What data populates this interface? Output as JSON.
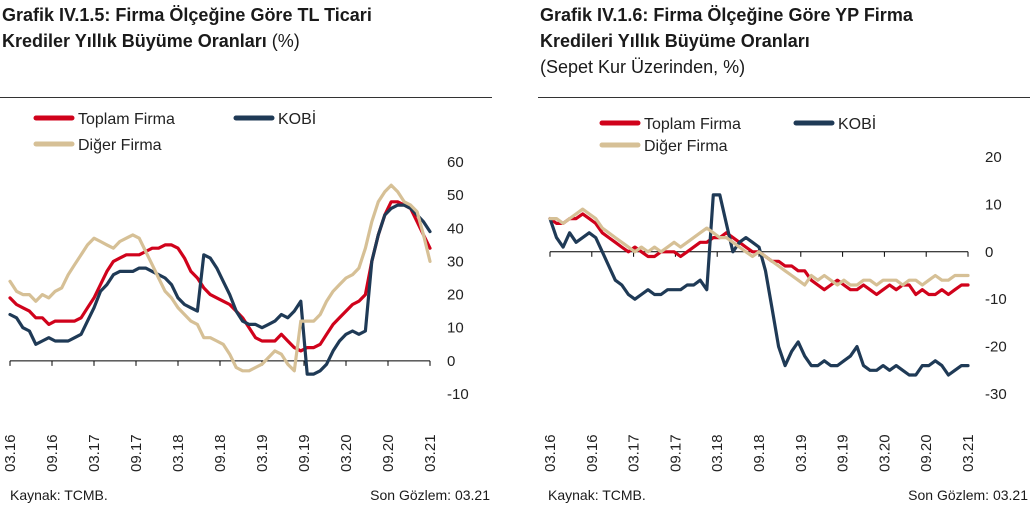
{
  "charts": [
    {
      "title_bold_1": "Grafik IV.1.5: Firma Ölçeğine Göre TL Ticari",
      "title_bold_2": "Krediler Yıllık Büyüme Oranları",
      "title_normal_2": " (%)",
      "title_line_3": "",
      "source": "Kaynak: TCMB.",
      "last_obs": "Son Gözlem: 03.21"
    },
    {
      "title_bold_1": "Grafik IV.1.6: Firma Ölçeğine Göre YP Firma",
      "title_bold_2": "Kredileri Yıllık Büyüme Oranları",
      "title_normal_2": "",
      "title_line_3": "(Sepet Kur Üzerinden, %)",
      "source": "Kaynak: TCMB.",
      "last_obs": "Son Gözlem: 03.21"
    }
  ],
  "chart_data": [
    {
      "type": "line",
      "x_ticks": [
        "03.16",
        "09.16",
        "03.17",
        "09.17",
        "03.18",
        "09.18",
        "03.19",
        "09.19",
        "03.20",
        "09.20",
        "03.21"
      ],
      "ylim": [
        -10,
        60
      ],
      "y_ticks": [
        -10,
        0,
        10,
        20,
        30,
        40,
        50,
        60
      ],
      "legend": "top-left",
      "series": [
        {
          "name": "Toplam Firma",
          "color": "#d0021b",
          "values": [
            19,
            17,
            16,
            15,
            13,
            13,
            11,
            12,
            12,
            12,
            12,
            13,
            16,
            19,
            23,
            27,
            30,
            31,
            32,
            32,
            32,
            33,
            34,
            34,
            35,
            35,
            34,
            31,
            27,
            25,
            22,
            20,
            19,
            18,
            17,
            15,
            13,
            10,
            7,
            6,
            6,
            6,
            8,
            6,
            4,
            3,
            4,
            4,
            5,
            8,
            11,
            13,
            15,
            17,
            18,
            20,
            30,
            38,
            44,
            48,
            48,
            47,
            46,
            42,
            38,
            34
          ]
        },
        {
          "name": "KOBİ",
          "color": "#1f3a56",
          "values": [
            14,
            13,
            10,
            9,
            5,
            6,
            7,
            6,
            6,
            6,
            7,
            8,
            12,
            16,
            21,
            23,
            26,
            27,
            27,
            27,
            28,
            28,
            27,
            26,
            25,
            23,
            19,
            17,
            16,
            15,
            32,
            31,
            28,
            24,
            20,
            15,
            12,
            11,
            11,
            10,
            11,
            12,
            14,
            13,
            15,
            18,
            -4,
            -4,
            -3,
            -1,
            3,
            6,
            8,
            9,
            8,
            9,
            30,
            38,
            44,
            46,
            47,
            47,
            46,
            44,
            42,
            39
          ]
        },
        {
          "name": "Diğer Firma",
          "color": "#d6c096",
          "values": [
            24,
            21,
            20,
            20,
            18,
            20,
            19,
            21,
            22,
            26,
            29,
            32,
            35,
            37,
            36,
            35,
            34,
            36,
            37,
            38,
            37,
            33,
            29,
            25,
            21,
            19,
            16,
            14,
            12,
            11,
            7,
            7,
            6,
            5,
            2,
            -2,
            -3,
            -3,
            -2,
            -1,
            1,
            3,
            2,
            -1,
            -3,
            12,
            12,
            12,
            14,
            18,
            21,
            23,
            25,
            26,
            28,
            34,
            42,
            48,
            51,
            53,
            51,
            48,
            47,
            45,
            38,
            30
          ]
        }
      ]
    },
    {
      "type": "line",
      "x_ticks": [
        "03.16",
        "09.16",
        "03.17",
        "09.17",
        "03.18",
        "09.18",
        "03.19",
        "09.19",
        "03.20",
        "09.20",
        "03.21"
      ],
      "ylim": [
        -30,
        20
      ],
      "y_ticks": [
        -30,
        -20,
        -10,
        0,
        10,
        20
      ],
      "legend": "top-left",
      "series": [
        {
          "name": "Toplam Firma",
          "color": "#d0021b",
          "values": [
            7,
            6,
            6,
            7,
            7,
            8,
            7,
            6,
            4,
            3,
            2,
            1,
            0,
            1,
            0,
            -1,
            -1,
            0,
            0,
            0,
            -1,
            0,
            1,
            2,
            2,
            3,
            3,
            4,
            3,
            2,
            1,
            0,
            0,
            -1,
            -2,
            -2,
            -3,
            -3,
            -4,
            -4,
            -6,
            -7,
            -8,
            -7,
            -6,
            -7,
            -8,
            -8,
            -7,
            -8,
            -9,
            -8,
            -7,
            -8,
            -7,
            -7,
            -9,
            -8,
            -9,
            -9,
            -8,
            -9,
            -8,
            -7,
            -7
          ]
        },
        {
          "name": "KOBİ",
          "color": "#1f3a56",
          "values": [
            7,
            3,
            1,
            4,
            2,
            3,
            4,
            3,
            0,
            -3,
            -6,
            -7,
            -9,
            -10,
            -9,
            -8,
            -9,
            -9,
            -8,
            -8,
            -8,
            -7,
            -7,
            -6,
            -8,
            12,
            12,
            6,
            0,
            2,
            3,
            2,
            1,
            -4,
            -12,
            -20,
            -24,
            -21,
            -19,
            -22,
            -24,
            -24,
            -23,
            -24,
            -24,
            -23,
            -22,
            -20,
            -24,
            -25,
            -25,
            -24,
            -25,
            -24,
            -25,
            -26,
            -26,
            -24,
            -24,
            -23,
            -24,
            -26,
            -25,
            -24,
            -24
          ]
        },
        {
          "name": "Diğer Firma",
          "color": "#d6c096",
          "values": [
            7,
            7,
            6,
            7,
            8,
            9,
            8,
            7,
            5,
            4,
            3,
            2,
            1,
            0,
            1,
            0,
            1,
            0,
            1,
            2,
            1,
            2,
            3,
            4,
            5,
            4,
            3,
            3,
            2,
            1,
            0,
            -1,
            0,
            -1,
            -2,
            -3,
            -4,
            -5,
            -6,
            -7,
            -5,
            -6,
            -5,
            -6,
            -7,
            -6,
            -7,
            -7,
            -6,
            -6,
            -7,
            -6,
            -6,
            -6,
            -7,
            -6,
            -6,
            -7,
            -6,
            -5,
            -6,
            -6,
            -5,
            -5,
            -5
          ]
        }
      ]
    }
  ]
}
